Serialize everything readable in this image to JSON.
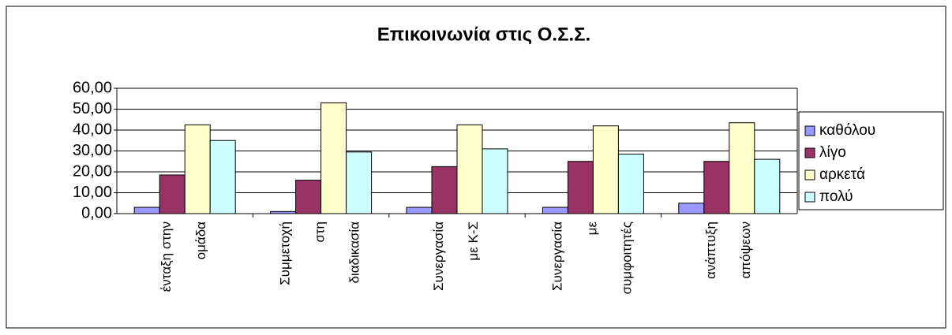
{
  "chart_data": {
    "type": "bar",
    "title": "Επικοινωνία στις Ο.Σ.Σ.",
    "categories": [
      "ένταξη στην\nομάδα",
      "Συμμετοχή\nστη\nδιαδικασία",
      "Συνεργασία\nμε Κ-Σ",
      "Συνεργασία\nμε\nσυμφοιτητές",
      "ανάπτυξη\nαπόψεων"
    ],
    "series": [
      {
        "name": "καθόλου",
        "color": "#9999ff",
        "values": [
          3,
          1,
          3,
          3,
          5
        ]
      },
      {
        "name": "λίγο",
        "color": "#993366",
        "values": [
          18.5,
          16,
          22.5,
          25,
          25
        ]
      },
      {
        "name": "αρκετά",
        "color": "#ffffcc",
        "values": [
          42.5,
          53,
          42.5,
          42,
          43.5
        ]
      },
      {
        "name": "πολύ",
        "color": "#ccffff",
        "values": [
          35,
          29.5,
          31,
          28.5,
          26
        ]
      }
    ],
    "ylim": [
      0,
      60
    ],
    "yticks": [
      {
        "value": 0,
        "label": "0,00"
      },
      {
        "value": 10,
        "label": "10,00"
      },
      {
        "value": 20,
        "label": "20,00"
      },
      {
        "value": 30,
        "label": "30,00"
      },
      {
        "value": 40,
        "label": "40,00"
      },
      {
        "value": 50,
        "label": "50,00"
      },
      {
        "value": 60,
        "label": "60,00"
      }
    ],
    "grid": true,
    "legend": "right"
  }
}
